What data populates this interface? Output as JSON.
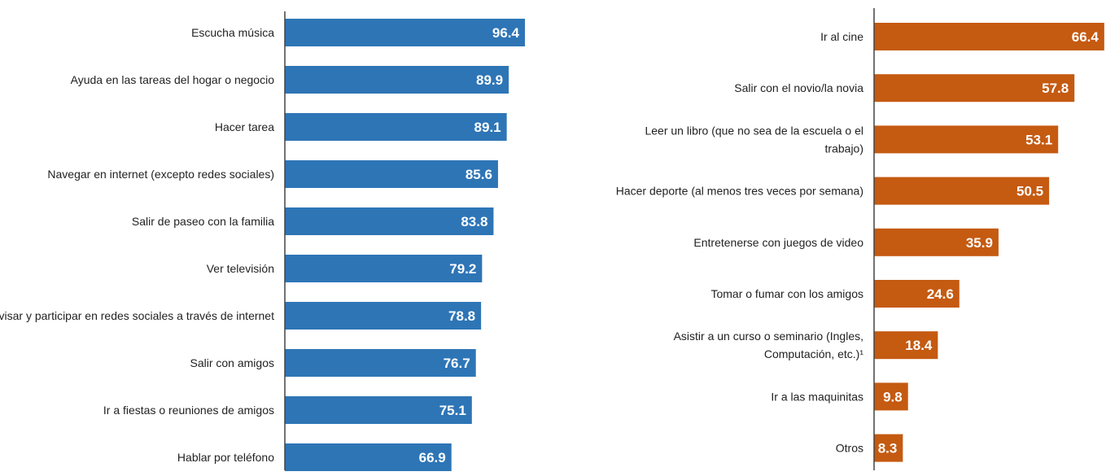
{
  "chart_data": [
    {
      "type": "bar",
      "orientation": "horizontal",
      "color": "#2e75b6",
      "categories": [
        [
          "Escucha música"
        ],
        [
          "Ayuda en las tareas del hogar o negocio"
        ],
        [
          "Hacer tarea"
        ],
        [
          "Navegar en internet (excepto redes sociales)"
        ],
        [
          "Salir de paseo con la familia"
        ],
        [
          "Ver televisión"
        ],
        [
          "Revisar y participar en redes sociales a través de internet"
        ],
        [
          "Salir con amigos"
        ],
        [
          "Ir a fiestas o reuniones de amigos"
        ],
        [
          "Hablar por teléfono"
        ]
      ],
      "values": [
        96.4,
        89.9,
        89.1,
        85.6,
        83.8,
        79.2,
        78.8,
        76.7,
        75.1,
        66.9
      ],
      "value_labels": [
        "96.4",
        "89.9",
        "89.1",
        "85.6",
        "83.8",
        "79.2",
        "78.8",
        "76.7",
        "75.1",
        "66.9"
      ]
    },
    {
      "type": "bar",
      "orientation": "horizontal",
      "color": "#c55a11",
      "categories": [
        [
          "Ir al cine"
        ],
        [
          "Salir con el novio/la novia"
        ],
        [
          "Leer un libro (que no sea de la escuela o el",
          "trabajo)"
        ],
        [
          "Hacer deporte (al menos tres veces por semana)"
        ],
        [
          "Entretenerse con juegos de video"
        ],
        [
          "Tomar o fumar con los amigos"
        ],
        [
          "Asistir a un curso o seminario (Ingles,",
          "Computación, etc.)¹"
        ],
        [
          "Ir a las maquinitas"
        ],
        [
          "Otros"
        ]
      ],
      "values": [
        66.4,
        57.8,
        53.1,
        50.5,
        35.9,
        24.6,
        18.4,
        9.8,
        8.3
      ],
      "value_labels": [
        "66.4",
        "57.8",
        "53.1",
        "50.5",
        "35.9",
        "24.6",
        "18.4",
        "9.8",
        "8.3"
      ]
    }
  ]
}
